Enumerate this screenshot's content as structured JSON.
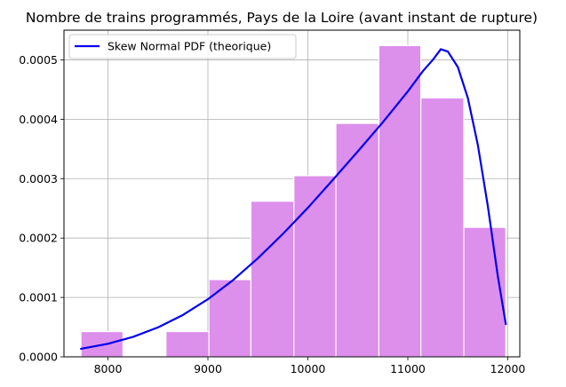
{
  "chart_data": {
    "type": "bar",
    "title": "Nombre de trains programmés, Pays de la Loire (avant instant de rupture)",
    "xlabel": "",
    "ylabel": "",
    "xlim": [
      7560,
      12120
    ],
    "ylim": [
      0,
      0.00055
    ],
    "xticks": [
      8000,
      9000,
      10000,
      11000,
      12000
    ],
    "yticks": [
      0,
      0.0001,
      0.0002,
      0.0003,
      0.0004,
      0.0005
    ],
    "ytick_labels": [
      "0.0000",
      "0.0001",
      "0.0002",
      "0.0003",
      "0.0004",
      "0.0005"
    ],
    "grid": true,
    "legend_position": "top-left",
    "histogram": {
      "color": "#dd8fec",
      "edgecolor": "#ffffff",
      "bins": [
        {
          "x0": 7730,
          "x1": 8150,
          "value": 4.25e-05
        },
        {
          "x0": 8150,
          "x1": 8580,
          "value": 0.0
        },
        {
          "x0": 8580,
          "x1": 9010,
          "value": 4.25e-05
        },
        {
          "x0": 9010,
          "x1": 9430,
          "value": 0.00013
        },
        {
          "x0": 9430,
          "x1": 9860,
          "value": 0.000262
        },
        {
          "x0": 9860,
          "x1": 10280,
          "value": 0.000305
        },
        {
          "x0": 10280,
          "x1": 10710,
          "value": 0.000393
        },
        {
          "x0": 10710,
          "x1": 11130,
          "value": 0.000524
        },
        {
          "x0": 11130,
          "x1": 11560,
          "value": 0.000436
        },
        {
          "x0": 11560,
          "x1": 11980,
          "value": 0.000218
        }
      ]
    },
    "series": [
      {
        "name": "Skew Normal PDF (theorique)",
        "type": "line",
        "color": "#0000ee",
        "x": [
          7730,
          8000,
          8250,
          8500,
          8750,
          9000,
          9250,
          9500,
          9750,
          10000,
          10250,
          10500,
          10750,
          11000,
          11150,
          11250,
          11330,
          11400,
          11500,
          11600,
          11700,
          11800,
          11900,
          11980
        ],
        "y": [
          1.35e-05,
          2.2e-05,
          3.35e-05,
          4.95e-05,
          7.05e-05,
          9.7e-05,
          0.000129,
          0.000166,
          0.000207,
          0.000251,
          0.000298,
          0.000346,
          0.000395,
          0.000447,
          0.000481,
          0.0005,
          0.000518,
          0.000514,
          0.000488,
          0.000436,
          0.000357,
          0.000254,
          0.000136,
          5.5e-05
        ]
      }
    ]
  }
}
